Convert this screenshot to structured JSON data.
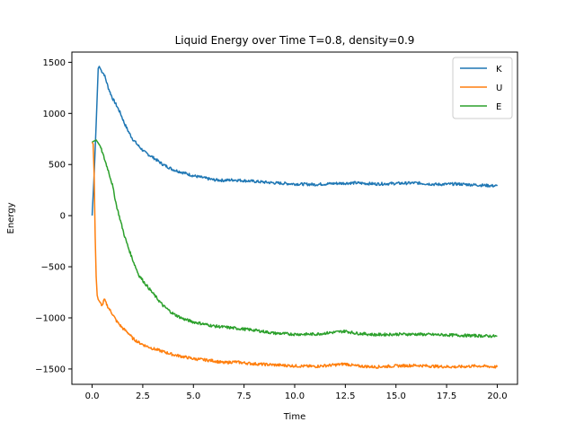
{
  "chart_data": {
    "type": "line",
    "title": "Liquid Energy over Time T=0.8, density=0.9",
    "xlabel": "Time",
    "ylabel": "Energy",
    "xlim": [
      -1.0,
      21.0
    ],
    "ylim": [
      -1650,
      1600
    ],
    "x_ticks": [
      0.0,
      2.5,
      5.0,
      7.5,
      10.0,
      12.5,
      15.0,
      17.5,
      20.0
    ],
    "x_tick_labels": [
      "0.0",
      "2.5",
      "5.0",
      "7.5",
      "10.0",
      "12.5",
      "15.0",
      "17.5",
      "20.0"
    ],
    "y_ticks": [
      -1500,
      -1000,
      -500,
      0,
      500,
      1000,
      1500
    ],
    "y_tick_labels": [
      "−1500",
      "−1000",
      "−500",
      "0",
      "500",
      "1000",
      "1500"
    ],
    "grid": false,
    "legend": "top-right",
    "series": [
      {
        "name": "K",
        "color": "#1f77b4",
        "x": [
          0,
          0.1,
          0.2,
          0.3,
          0.35,
          0.45,
          0.6,
          0.8,
          1.0,
          1.2,
          1.4,
          1.6,
          1.8,
          2.0,
          2.3,
          2.6,
          3.0,
          3.5,
          4.0,
          4.5,
          5.0,
          5.5,
          6.0,
          6.5,
          7.0,
          8.0,
          9.0,
          10.0,
          11.0,
          12.0,
          13.0,
          14.0,
          15.0,
          16.0,
          17.0,
          18.0,
          19.0,
          20.0
        ],
        "y": [
          0,
          400,
          900,
          1440,
          1460,
          1420,
          1380,
          1250,
          1150,
          1080,
          1000,
          900,
          820,
          750,
          680,
          620,
          570,
          500,
          450,
          420,
          390,
          370,
          350,
          345,
          350,
          335,
          320,
          310,
          305,
          315,
          320,
          310,
          315,
          320,
          305,
          310,
          300,
          290
        ]
      },
      {
        "name": "U",
        "color": "#ff7f0e",
        "x": [
          0,
          0.05,
          0.1,
          0.15,
          0.2,
          0.25,
          0.3,
          0.4,
          0.5,
          0.6,
          0.8,
          1.0,
          1.2,
          1.5,
          1.8,
          2.0,
          2.3,
          2.6,
          3.0,
          3.5,
          4.0,
          4.5,
          5.0,
          5.5,
          6.0,
          6.5,
          7.0,
          8.0,
          9.0,
          10.0,
          11.0,
          12.0,
          12.5,
          13.0,
          14.0,
          15.0,
          16.0,
          17.0,
          18.0,
          19.0,
          20.0
        ],
        "y": [
          720,
          700,
          400,
          -200,
          -600,
          -780,
          -820,
          -850,
          -880,
          -820,
          -900,
          -960,
          -1030,
          -1100,
          -1150,
          -1200,
          -1240,
          -1270,
          -1300,
          -1330,
          -1360,
          -1380,
          -1400,
          -1410,
          -1420,
          -1440,
          -1430,
          -1450,
          -1460,
          -1470,
          -1475,
          -1460,
          -1450,
          -1470,
          -1480,
          -1470,
          -1465,
          -1475,
          -1480,
          -1470,
          -1480
        ]
      },
      {
        "name": "E",
        "color": "#2ca02c",
        "x": [
          0,
          0.2,
          0.4,
          0.6,
          0.8,
          1.0,
          1.2,
          1.4,
          1.6,
          1.8,
          2.0,
          2.3,
          2.6,
          3.0,
          3.5,
          4.0,
          4.5,
          5.0,
          5.5,
          6.0,
          6.5,
          7.0,
          8.0,
          9.0,
          10.0,
          11.0,
          12.0,
          12.5,
          13.0,
          14.0,
          15.0,
          16.0,
          17.0,
          18.0,
          19.0,
          20.0
        ],
        "y": [
          720,
          740,
          680,
          560,
          440,
          300,
          100,
          -50,
          -200,
          -320,
          -430,
          -580,
          -660,
          -760,
          -880,
          -960,
          -1010,
          -1040,
          -1060,
          -1080,
          -1090,
          -1100,
          -1120,
          -1150,
          -1160,
          -1160,
          -1140,
          -1130,
          -1150,
          -1165,
          -1160,
          -1160,
          -1165,
          -1170,
          -1175,
          -1180
        ]
      }
    ]
  }
}
